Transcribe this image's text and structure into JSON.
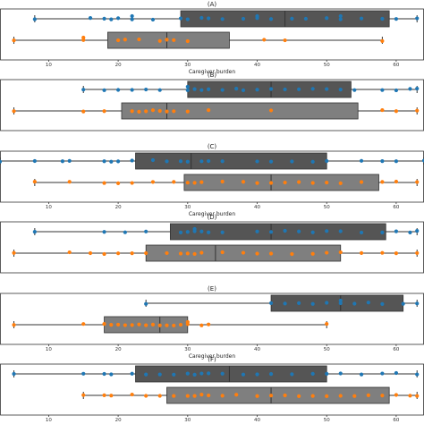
{
  "chart_data": {
    "type": "box",
    "xlabel": "Caregiver burden",
    "xlim": [
      3,
      64
    ],
    "xticks": [
      10,
      20,
      30,
      40,
      50,
      60
    ],
    "grid": false,
    "colors": {
      "blue": "#1f77b4",
      "orange": "#ff7f0e",
      "box_dark": "#555555",
      "box_light": "#7f7f7f"
    },
    "panels": [
      {
        "title": "(A)",
        "show_xaxis": true,
        "rows": [
          {
            "color": "blue",
            "box_shade": "dark",
            "whisker_low": 8,
            "q1": 29,
            "median": 44,
            "q3": 59,
            "whisker_high": 63,
            "points": [
              8,
              16,
              18,
              19,
              20,
              22,
              22,
              25,
              29,
              30,
              32,
              33,
              35,
              38,
              40,
              40,
              42,
              45,
              47,
              50,
              52,
              52,
              55,
              58,
              60,
              63
            ]
          },
          {
            "color": "orange",
            "box_shade": "light",
            "whisker_low": 5,
            "q1": 18.5,
            "median": 27,
            "q3": 36,
            "whisker_high": 58,
            "points": [
              5,
              15,
              15,
              20,
              21,
              23,
              26,
              27,
              28,
              30,
              41,
              44,
              58
            ]
          }
        ]
      },
      {
        "title": "(B)",
        "show_xaxis": false,
        "rows": [
          {
            "color": "blue",
            "box_shade": "dark",
            "whisker_low": 15,
            "q1": 30,
            "median": 42,
            "q3": 53.5,
            "whisker_high": 63,
            "points": [
              15,
              18,
              20,
              22,
              24,
              26,
              30,
              30,
              31,
              32,
              33,
              35,
              37,
              38,
              40,
              42,
              44,
              46,
              48,
              50,
              52,
              54,
              58,
              60,
              62,
              63
            ]
          },
          {
            "color": "orange",
            "box_shade": "light",
            "whisker_low": 5,
            "q1": 20.5,
            "median": 27,
            "q3": 54.5,
            "whisker_high": 63,
            "points": [
              5,
              15,
              18,
              22,
              23,
              24,
              25,
              26,
              27,
              28,
              30,
              33,
              42,
              58,
              60,
              63
            ]
          }
        ]
      },
      {
        "title": "(C)",
        "show_xaxis": true,
        "rows": [
          {
            "color": "blue",
            "box_shade": "dark",
            "whisker_low": 3,
            "q1": 22.5,
            "median": 30.5,
            "q3": 50,
            "whisker_high": 64,
            "points": [
              3,
              8,
              12,
              13,
              18,
              19,
              20,
              22,
              25,
              27,
              29,
              30,
              32,
              33,
              35,
              40,
              42,
              45,
              48,
              50,
              55,
              58,
              60,
              64
            ]
          },
          {
            "color": "orange",
            "box_shade": "light",
            "whisker_low": 8,
            "q1": 29.5,
            "median": 42,
            "q3": 57.5,
            "whisker_high": 63,
            "points": [
              8,
              13,
              18,
              20,
              22,
              25,
              28,
              30,
              31,
              32,
              35,
              38,
              40,
              42,
              44,
              46,
              48,
              50,
              52,
              55,
              58,
              60,
              63
            ]
          }
        ]
      },
      {
        "title": "(D)",
        "show_xaxis": false,
        "rows": [
          {
            "color": "blue",
            "box_shade": "dark",
            "whisker_low": 8,
            "q1": 27.5,
            "median": 42,
            "q3": 58.5,
            "whisker_high": 63,
            "points": [
              8,
              18,
              21,
              24,
              29,
              30,
              31,
              31,
              32,
              33,
              35,
              40,
              42,
              44,
              46,
              48,
              50,
              52,
              55,
              58,
              60,
              62,
              63
            ]
          },
          {
            "color": "orange",
            "box_shade": "light",
            "whisker_low": 5,
            "q1": 24,
            "median": 34,
            "q3": 52,
            "whisker_high": 63,
            "points": [
              5,
              13,
              16,
              18,
              20,
              22,
              24,
              27,
              29,
              30,
              31,
              32,
              35,
              38,
              40,
              42,
              45,
              48,
              50,
              52,
              55,
              58,
              60,
              63
            ]
          }
        ]
      },
      {
        "title": "(E)",
        "show_xaxis": true,
        "rows": [
          {
            "color": "blue",
            "box_shade": "dark",
            "whisker_low": 24,
            "q1": 42,
            "median": 52,
            "q3": 61,
            "whisker_high": 63,
            "points": [
              24,
              42,
              44,
              46,
              48,
              50,
              52,
              52,
              54,
              56,
              58,
              61,
              63
            ]
          },
          {
            "color": "orange",
            "box_shade": "light",
            "whisker_low": 5,
            "q1": 18,
            "median": 26,
            "q3": 30,
            "whisker_high": 50,
            "points": [
              5,
              15,
              18,
              19,
              20,
              21,
              22,
              23,
              24,
              25,
              26,
              27,
              28,
              29,
              30,
              30,
              32,
              33,
              50
            ]
          }
        ]
      },
      {
        "title": "(F)",
        "show_xaxis": true,
        "rows": [
          {
            "color": "blue",
            "box_shade": "dark",
            "whisker_low": 5,
            "q1": 22.5,
            "median": 36,
            "q3": 50,
            "whisker_high": 63,
            "points": [
              5,
              15,
              18,
              19,
              22,
              24,
              26,
              28,
              30,
              31,
              32,
              33,
              35,
              38,
              40,
              42,
              45,
              48,
              50,
              52,
              55,
              58,
              60,
              63
            ]
          },
          {
            "color": "orange",
            "box_shade": "light",
            "whisker_low": 15,
            "q1": 27,
            "median": 42,
            "q3": 59,
            "whisker_high": 63,
            "points": [
              15,
              18,
              19,
              22,
              24,
              26,
              28,
              30,
              31,
              32,
              33,
              35,
              37,
              40,
              42,
              44,
              46,
              48,
              50,
              52,
              54,
              56,
              58,
              60,
              62,
              63
            ]
          }
        ]
      }
    ]
  }
}
